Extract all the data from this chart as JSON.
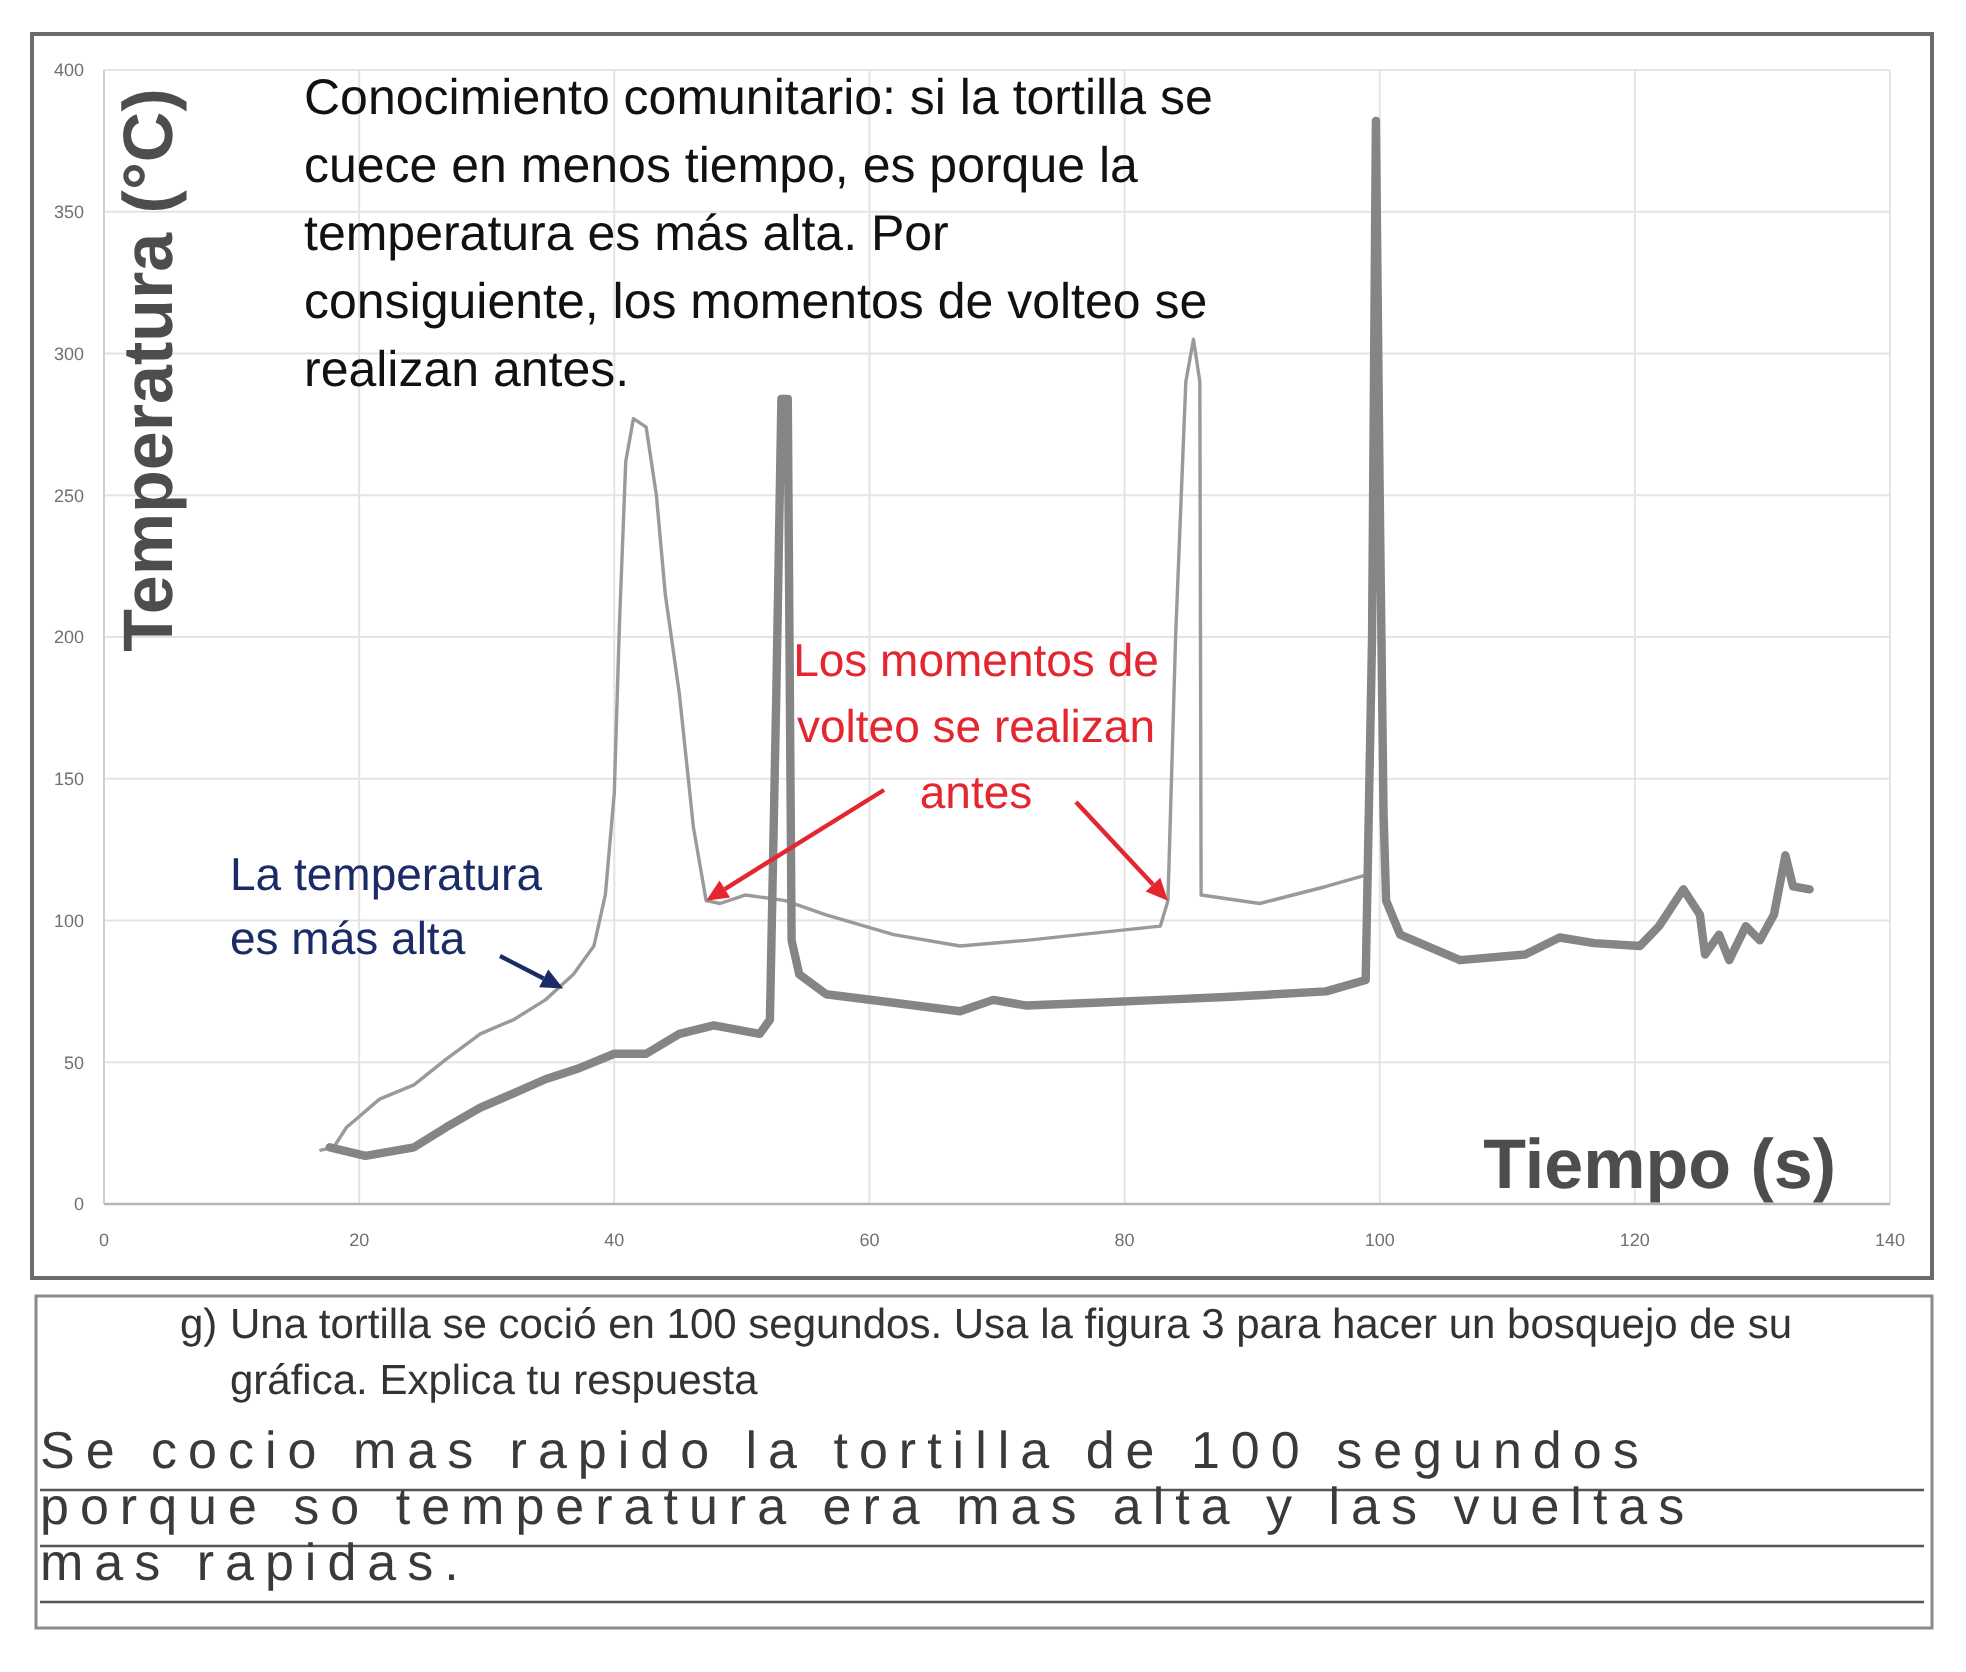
{
  "chart_data": {
    "type": "line",
    "xlabel": "Tiempo (s)",
    "ylabel": "Temperatura (°C)",
    "xlim": [
      0,
      140
    ],
    "ylim": [
      0,
      400
    ],
    "xticks": [
      0,
      20,
      40,
      60,
      80,
      100,
      120,
      140
    ],
    "yticks": [
      0,
      50,
      100,
      150,
      200,
      250,
      300,
      350,
      400
    ],
    "grid": true,
    "series": [
      {
        "color": "#9a9a9a",
        "x": [
          17,
          18,
          19,
          21.6,
          24.3,
          26.8,
          29.5,
          32.1,
          34.6,
          36.8,
          38.4,
          39.3,
          40,
          40.4,
          40.9,
          41.5,
          42.5,
          43.3,
          44,
          45.1,
          46.2,
          47.2,
          48.3,
          50.3,
          53.4,
          56.6,
          61.9,
          67.1,
          72.3,
          76.5,
          82.8,
          83.4,
          84,
          84.8,
          85.4,
          85.9,
          86,
          90.6,
          95.8,
          98.9
        ],
        "values": [
          19,
          20,
          27,
          37,
          42,
          51,
          60,
          65,
          72,
          81,
          91,
          109,
          145,
          204,
          262,
          277,
          274,
          250,
          215,
          180,
          133,
          107,
          106,
          109,
          107,
          102,
          95,
          91,
          93,
          95,
          98,
          107,
          200,
          290,
          305,
          290,
          109,
          106,
          112,
          116
        ]
      },
      {
        "color": "#858585",
        "x": [
          17.7,
          20.5,
          24.3,
          26.8,
          29.5,
          32.1,
          34.6,
          37.3,
          40,
          42.5,
          45.1,
          47.8,
          51.4,
          52.2,
          52.7,
          53.1,
          53.6,
          53.9,
          54.5,
          56.6,
          61.9,
          67.1,
          69.7,
          72.3,
          77.6,
          82.8,
          87.9,
          95.8,
          98.9,
          99.4,
          99.7,
          100,
          100.3,
          100.5,
          101.6,
          106.3,
          111.4,
          114.1,
          116.8,
          120.4,
          121.9,
          123.8,
          125.1,
          125.5,
          126.6,
          127.4,
          128.7,
          129.8,
          130.9,
          131.8,
          132.4,
          133.7
        ],
        "values": [
          20,
          17,
          20,
          27,
          34,
          39,
          44,
          48,
          53,
          53,
          60,
          63,
          60,
          65,
          180,
          284,
          284,
          93,
          81,
          74,
          71,
          68,
          72,
          70,
          71,
          72,
          73,
          75,
          79,
          200,
          382,
          250,
          138,
          107,
          95,
          86,
          88,
          94,
          92,
          91,
          98,
          111,
          102,
          88,
          95,
          86,
          98,
          93,
          102,
          123,
          112,
          111
        ]
      }
    ],
    "annotations": [
      "Conocimiento comunitario: si la tortilla se cuece en menos tiempo, es porque la temperatura es más alta. Por consiguiente, los momentos de volteo se realizan antes.",
      {
        "text": "Los momentos de volteo se realizan antes",
        "x": 47.2,
        "y": 107
      },
      {
        "text": "La temperatura es más alta",
        "x": 36,
        "y": 76
      },
      "g) Una tortilla se coció en 100 segundos. Usa la figura 3 para hacer un bosquejo de su gráfica. Explica tu respuesta",
      "Se cocio mas rapido la tortilla de 100 segundos porque so temperatura era mas alta y las vueltas mas rapidas."
    ]
  }
}
